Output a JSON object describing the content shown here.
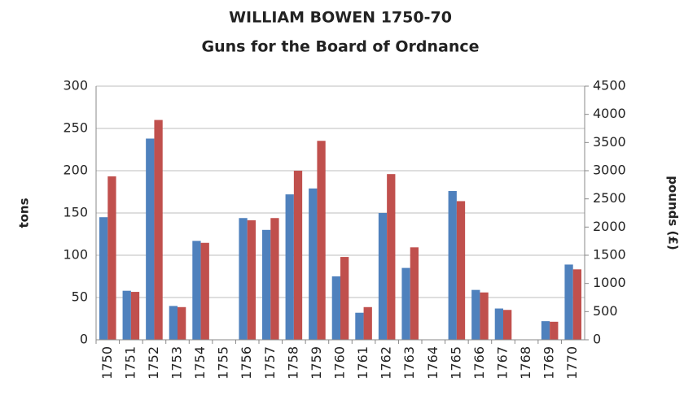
{
  "chart_data": {
    "type": "bar",
    "title": "WILLIAM BOWEN 1750-70",
    "subtitle": "Guns for the Board of Ordnance",
    "y_label": "tons",
    "y2_label": "pounds (£)",
    "categories": [
      "1750",
      "1751",
      "1752",
      "1753",
      "1754",
      "1755",
      "1756",
      "1757",
      "1758",
      "1759",
      "1760",
      "1761",
      "1762",
      "1763",
      "1764",
      "1765",
      "1766",
      "1767",
      "1768",
      "1769",
      "1770"
    ],
    "series": [
      {
        "color": "#4f81bd",
        "axis": "y",
        "values": [
          145,
          58,
          238,
          40,
          117,
          null,
          144,
          130,
          172,
          179,
          75,
          32,
          150,
          85,
          null,
          176,
          59,
          37,
          null,
          22,
          89
        ]
      },
      {
        "color": "#c0504d",
        "axis": "y2",
        "values": [
          2900,
          850,
          3900,
          580,
          1720,
          null,
          2120,
          2160,
          3000,
          3530,
          1470,
          580,
          2940,
          1640,
          null,
          2460,
          840,
          530,
          null,
          320,
          1250
        ]
      }
    ],
    "ylim": [
      0,
      300
    ],
    "yticks": [
      0,
      50,
      100,
      150,
      200,
      250,
      300
    ],
    "y2lim": [
      0,
      4500
    ],
    "y2ticks": [
      0,
      500,
      1000,
      1500,
      2000,
      2500,
      3000,
      3500,
      4000,
      4500
    ],
    "grid": true
  }
}
